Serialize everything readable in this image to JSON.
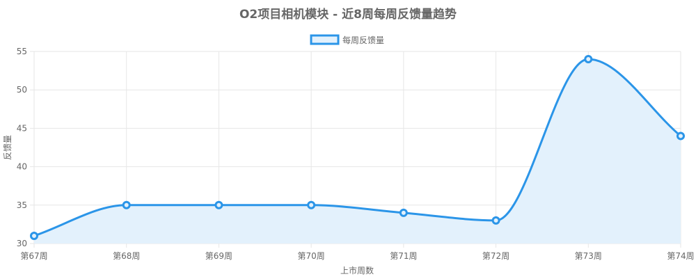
{
  "chart_data": {
    "type": "line",
    "title": "O2项目相机模块 - 近8周每周反馈量趋势",
    "xlabel": "上市周数",
    "ylabel": "反馈量",
    "categories": [
      "第67周",
      "第68周",
      "第69周",
      "第70周",
      "第71周",
      "第72周",
      "第73周",
      "第74周"
    ],
    "series": [
      {
        "name": "每周反馈量",
        "values": [
          31,
          35,
          35,
          35,
          34,
          33,
          54,
          44
        ]
      }
    ],
    "ylim": [
      30,
      55
    ],
    "yticks": [
      "30",
      "35",
      "40",
      "45",
      "50",
      "55"
    ],
    "grid": true,
    "legend_position": "top-center",
    "colors": {
      "line": "#2b95e8",
      "fill": "#e3f1fc",
      "grid": "#e6e6e6"
    }
  }
}
